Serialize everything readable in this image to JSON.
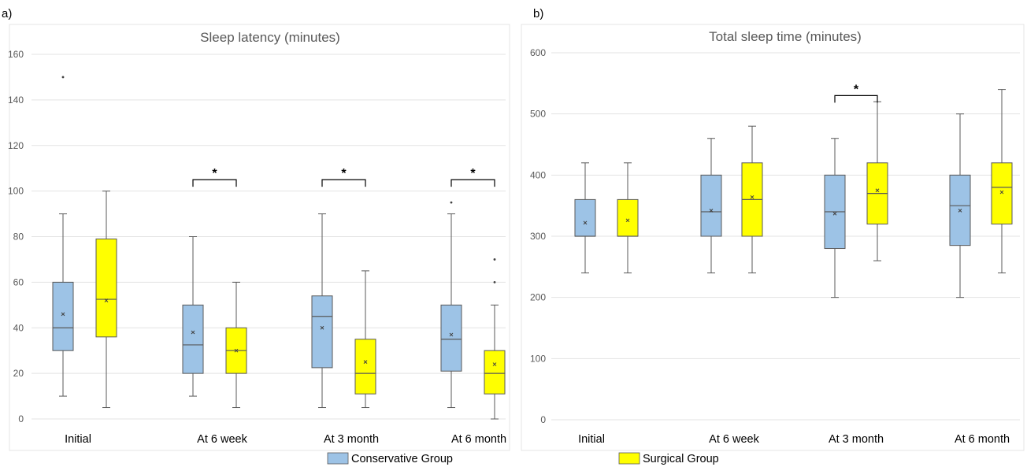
{
  "legend": {
    "entries": [
      {
        "label": "Conservative Group",
        "color": "#9dc3e6"
      },
      {
        "label": "Surgical Group",
        "color": "#ffff00"
      }
    ]
  },
  "chart_data": [
    {
      "panel_label": "a)",
      "type": "box",
      "title": "Sleep latency (minutes)",
      "categories": [
        "Initial",
        "At 6 week",
        "At 3 month",
        "At 6 month"
      ],
      "ylim": [
        0,
        160
      ],
      "yticks": [
        "0",
        "20",
        "40",
        "60",
        "80",
        "100",
        "120",
        "140",
        "160"
      ],
      "grid": true,
      "legend_position": "bottom",
      "series": [
        {
          "name": "Conservative Group",
          "color": "#9dc3e6",
          "boxes": [
            {
              "min": 10,
              "q1": 30,
              "median": 40,
              "q3": 60,
              "max": 90,
              "mean": 46,
              "outliers": [
                150
              ]
            },
            {
              "min": 10,
              "q1": 20,
              "median": 32.5,
              "q3": 50,
              "max": 80,
              "mean": 38,
              "outliers": []
            },
            {
              "min": 5,
              "q1": 22.5,
              "median": 45,
              "q3": 54,
              "max": 90,
              "mean": 40,
              "outliers": []
            },
            {
              "min": 5,
              "q1": 21,
              "median": 35,
              "q3": 50,
              "max": 90,
              "mean": 37,
              "outliers": [
                95
              ]
            }
          ]
        },
        {
          "name": "Surgical Group",
          "color": "#ffff00",
          "boxes": [
            {
              "min": 5,
              "q1": 36,
              "median": 52.5,
              "q3": 79,
              "max": 100,
              "mean": 52,
              "outliers": []
            },
            {
              "min": 5,
              "q1": 20,
              "median": 30,
              "q3": 40,
              "max": 60,
              "mean": 30,
              "outliers": []
            },
            {
              "min": 5,
              "q1": 11,
              "median": 20,
              "q3": 35,
              "max": 65,
              "mean": 25,
              "outliers": []
            },
            {
              "min": 0,
              "q1": 11,
              "median": 20,
              "q3": 30,
              "max": 50,
              "mean": 24,
              "outliers": [
                60,
                70
              ]
            }
          ]
        }
      ],
      "significance": [
        {
          "category_index": 1,
          "label": "*",
          "y": 105
        },
        {
          "category_index": 2,
          "label": "*",
          "y": 105
        },
        {
          "category_index": 3,
          "label": "*",
          "y": 105
        }
      ]
    },
    {
      "panel_label": "b)",
      "type": "box",
      "title": "Total sleep time (minutes)",
      "categories": [
        "Initial",
        "At 6 week",
        "At 3 month",
        "At 6 month"
      ],
      "ylim": [
        0,
        600
      ],
      "yticks": [
        "0",
        "100",
        "200",
        "300",
        "400",
        "500",
        "600"
      ],
      "grid": true,
      "legend_position": "bottom",
      "series": [
        {
          "name": "Conservative Group",
          "color": "#9dc3e6",
          "boxes": [
            {
              "min": 240,
              "q1": 300,
              "median": 300,
              "q3": 360,
              "max": 420,
              "mean": 322,
              "outliers": []
            },
            {
              "min": 240,
              "q1": 300,
              "median": 340,
              "q3": 400,
              "max": 460,
              "mean": 342,
              "outliers": []
            },
            {
              "min": 200,
              "q1": 280,
              "median": 340,
              "q3": 400,
              "max": 460,
              "mean": 337,
              "outliers": []
            },
            {
              "min": 200,
              "q1": 285,
              "median": 350,
              "q3": 400,
              "max": 500,
              "mean": 342,
              "outliers": []
            }
          ]
        },
        {
          "name": "Surgical Group",
          "color": "#ffff00",
          "boxes": [
            {
              "min": 240,
              "q1": 300,
              "median": 300,
              "q3": 360,
              "max": 420,
              "mean": 326,
              "outliers": []
            },
            {
              "min": 240,
              "q1": 300,
              "median": 360,
              "q3": 420,
              "max": 480,
              "mean": 364,
              "outliers": []
            },
            {
              "min": 260,
              "q1": 320,
              "median": 370,
              "q3": 420,
              "max": 520,
              "mean": 375,
              "outliers": []
            },
            {
              "min": 240,
              "q1": 320,
              "median": 380,
              "q3": 420,
              "max": 540,
              "mean": 372,
              "outliers": []
            }
          ]
        }
      ],
      "significance": [
        {
          "category_index": 2,
          "label": "*",
          "y": 530
        }
      ]
    }
  ]
}
